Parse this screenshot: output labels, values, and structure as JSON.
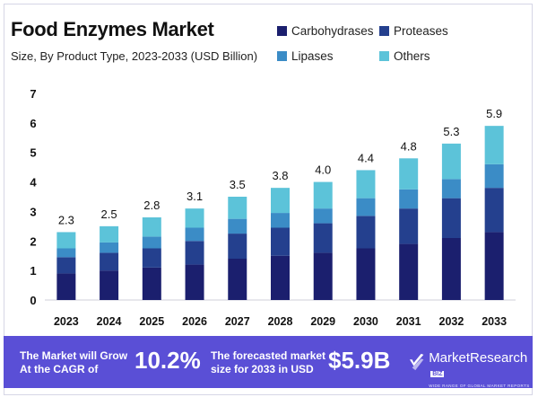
{
  "header": {
    "title": "Food Enzymes Market",
    "subtitle": "Size, By Product Type, 2023-2033 (USD Billion)"
  },
  "legend": [
    {
      "name": "Carbohydrases",
      "color": "#1b1f6e"
    },
    {
      "name": "Proteases",
      "color": "#24408e"
    },
    {
      "name": "Lipases",
      "color": "#3b8cc6"
    },
    {
      "name": "Others",
      "color": "#5cc3d9"
    }
  ],
  "chart_data": {
    "type": "bar",
    "stacked": true,
    "categories": [
      "2023",
      "2024",
      "2025",
      "2026",
      "2027",
      "2028",
      "2029",
      "2030",
      "2031",
      "2032",
      "2033"
    ],
    "totals": [
      2.3,
      2.5,
      2.8,
      3.1,
      3.5,
      3.8,
      4.0,
      4.4,
      4.8,
      5.3,
      5.9
    ],
    "total_labels": [
      "2.3",
      "2.5",
      "2.8",
      "3.1",
      "3.5",
      "3.8",
      "4.0",
      "4.4",
      "4.8",
      "5.3",
      "5.9"
    ],
    "series": [
      {
        "name": "Carbohydrases",
        "color": "#1b1f6e",
        "values": [
          0.9,
          1.0,
          1.1,
          1.2,
          1.4,
          1.5,
          1.6,
          1.75,
          1.9,
          2.1,
          2.3
        ]
      },
      {
        "name": "Proteases",
        "color": "#24408e",
        "values": [
          0.55,
          0.6,
          0.65,
          0.8,
          0.85,
          0.95,
          1.0,
          1.1,
          1.2,
          1.35,
          1.5
        ]
      },
      {
        "name": "Lipases",
        "color": "#3b8cc6",
        "values": [
          0.3,
          0.35,
          0.4,
          0.45,
          0.5,
          0.5,
          0.5,
          0.6,
          0.65,
          0.65,
          0.8
        ]
      },
      {
        "name": "Others",
        "color": "#5cc3d9",
        "values": [
          0.55,
          0.55,
          0.65,
          0.65,
          0.75,
          0.85,
          0.9,
          0.95,
          1.05,
          1.2,
          1.3
        ]
      }
    ],
    "y_ticks": [
      "0",
      "1",
      "2",
      "3",
      "4",
      "5",
      "6",
      "7"
    ],
    "ylim": [
      0,
      7
    ],
    "grid": false,
    "legend_position": "top-right"
  },
  "footer": {
    "cagr_text_line1": "The Market will Grow",
    "cagr_text_line2": "At the CAGR of",
    "cagr_value": "10.2%",
    "forecast_text_line1": "The forecasted market",
    "forecast_text_line2": "size for 2033 in USD",
    "forecast_value": "$5.9B",
    "brand_name": "MarketResearch",
    "brand_badge": "BIZ",
    "brand_tagline": "WIDE RANGE OF GLOBAL MARKET REPORTS",
    "bg_color": "#5a4fd6"
  }
}
